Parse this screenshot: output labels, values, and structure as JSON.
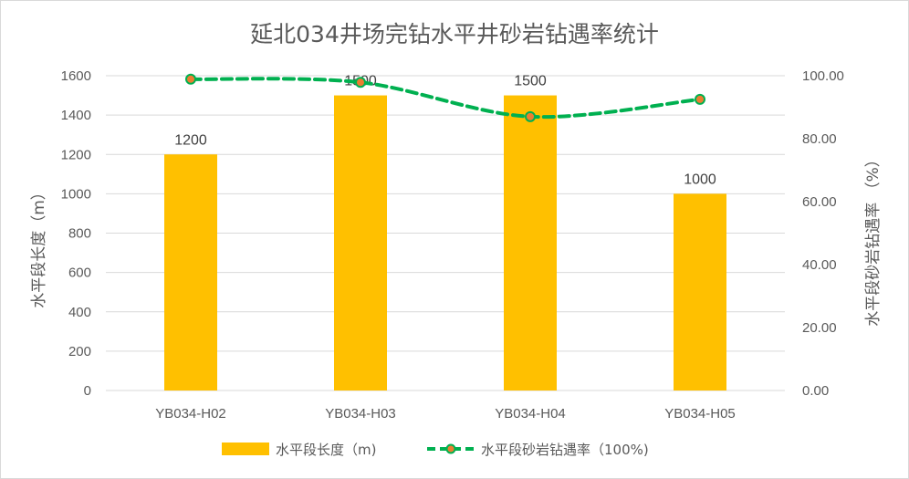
{
  "chart_data": {
    "type": "bar",
    "title": "延北034井场完钻水平井砂岩钻遇率统计",
    "categories": [
      "YB034-H02",
      "YB034-H03",
      "YB034-H04",
      "YB034-H05"
    ],
    "series": [
      {
        "name": "水平段长度（m)",
        "type": "bar",
        "axis": "left",
        "values": [
          1200,
          1500,
          1500,
          1000
        ],
        "color": "#FFC000"
      },
      {
        "name": "水平段砂岩钻遇率（100%)",
        "type": "line",
        "axis": "right",
        "values": [
          98.9,
          97.9,
          87.0,
          92.5
        ],
        "color": "#00B050",
        "marker_color": "#ED7D31",
        "line_style": "dashed"
      }
    ],
    "ylabel_left": "水平段长度（m）",
    "ylabel_right": "水平段砂岩钻遇率 （%）",
    "ylim_left": [
      0,
      1600
    ],
    "ylim_right": [
      0,
      100
    ],
    "yticks_left": [
      "0",
      "200",
      "400",
      "600",
      "800",
      "1000",
      "1200",
      "1400",
      "1600"
    ],
    "yticks_right": [
      "0.00",
      "20.00",
      "40.00",
      "60.00",
      "80.00",
      "100.00"
    ],
    "grid": true,
    "legend_position": "bottom"
  }
}
